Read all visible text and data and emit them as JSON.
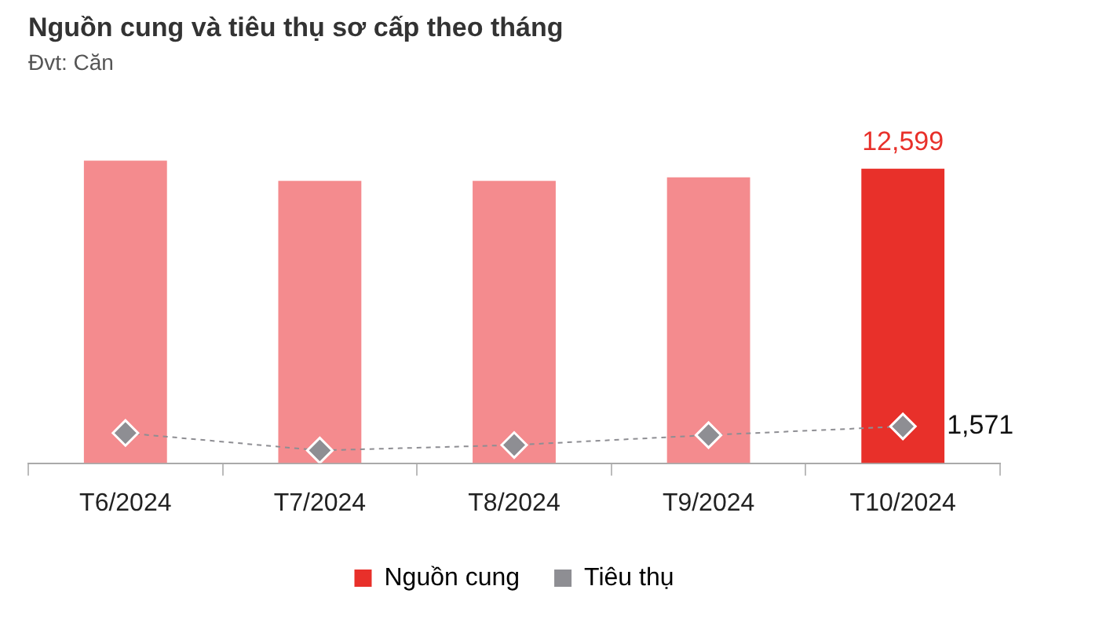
{
  "chart_data": {
    "type": "bar",
    "title": "Nguồn cung và tiêu thụ sơ cấp theo tháng",
    "subtitle": "Đvt: Căn",
    "categories": [
      "T6/2024",
      "T7/2024",
      "T8/2024",
      "T9/2024",
      "T10/2024"
    ],
    "series": [
      {
        "name": "Nguồn cung",
        "color": "#e8302a",
        "colors": [
          "#f48b8e",
          "#f48b8e",
          "#f48b8e",
          "#f48b8e",
          "#e8302a"
        ],
        "values": [
          12940,
          12080,
          12080,
          12230,
          12599
        ],
        "value_labels": [
          null,
          null,
          null,
          null,
          "12,599"
        ]
      },
      {
        "name": "Tiêu thụ",
        "type": "line",
        "color": "#8e8e93",
        "marker": "diamond",
        "line_style": "dashed",
        "values": [
          1290,
          545,
          775,
          1200,
          1571
        ],
        "value_labels": [
          null,
          null,
          null,
          null,
          "1,571"
        ]
      }
    ],
    "legend": "bottom",
    "grid": false
  }
}
